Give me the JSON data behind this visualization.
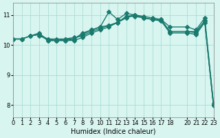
{
  "xlabel": "Humidex (Indice chaleur)",
  "ylabel": "",
  "bg_color": "#d8f5f0",
  "line_color": "#1a7a6e",
  "xlim": [
    0,
    23
  ],
  "ylim": [
    7.6,
    11.4
  ],
  "yticks": [
    8,
    9,
    10,
    11
  ],
  "xticks": [
    0,
    1,
    2,
    3,
    4,
    5,
    6,
    7,
    8,
    9,
    10,
    11,
    12,
    13,
    14,
    15,
    16,
    17,
    18,
    20,
    21,
    22,
    23
  ],
  "line1_x": [
    0,
    1,
    2,
    3,
    4,
    5,
    6,
    7,
    8,
    9,
    10,
    11,
    12,
    13,
    14,
    15,
    16,
    17,
    18,
    20,
    21,
    22,
    23
  ],
  "line1_y": [
    10.2,
    10.2,
    10.3,
    10.35,
    10.2,
    10.2,
    10.2,
    10.25,
    10.3,
    10.45,
    10.55,
    10.65,
    10.75,
    10.95,
    11.0,
    10.9,
    10.85,
    10.85,
    10.45,
    10.45,
    10.45,
    10.8,
    8.0
  ],
  "line2_x": [
    0,
    1,
    2,
    3,
    4,
    5,
    6,
    7,
    8,
    9,
    10,
    11,
    12,
    13,
    14,
    15,
    16,
    17,
    18,
    20,
    21,
    22,
    23
  ],
  "line2_y": [
    10.2,
    10.2,
    10.3,
    10.4,
    10.15,
    10.15,
    10.2,
    10.2,
    10.35,
    10.5,
    10.6,
    11.1,
    10.85,
    11.05,
    11.0,
    10.95,
    10.9,
    10.85,
    10.6,
    10.6,
    10.5,
    10.9,
    8.05
  ],
  "line3_x": [
    0,
    1,
    2,
    3,
    4,
    5,
    6,
    7,
    8,
    9,
    10,
    11,
    12,
    13,
    14,
    15,
    16,
    17,
    18,
    20,
    21,
    22,
    23
  ],
  "line3_y": [
    10.2,
    10.2,
    10.3,
    10.35,
    10.15,
    10.15,
    10.15,
    10.2,
    10.4,
    10.5,
    10.6,
    10.65,
    10.75,
    10.95,
    10.95,
    10.9,
    10.85,
    10.8,
    10.45,
    10.45,
    10.4,
    10.8,
    8.0
  ],
  "line4_x": [
    3,
    4,
    5,
    6,
    7,
    8,
    9,
    10,
    11,
    12,
    13,
    14,
    15,
    16,
    17,
    18,
    20,
    21,
    22,
    23
  ],
  "line4_y": [
    10.3,
    10.2,
    10.15,
    10.15,
    10.15,
    10.25,
    10.4,
    10.5,
    10.6,
    10.75,
    10.9,
    11.0,
    10.9,
    10.85,
    10.8,
    10.4,
    10.4,
    10.35,
    10.75,
    7.98
  ]
}
